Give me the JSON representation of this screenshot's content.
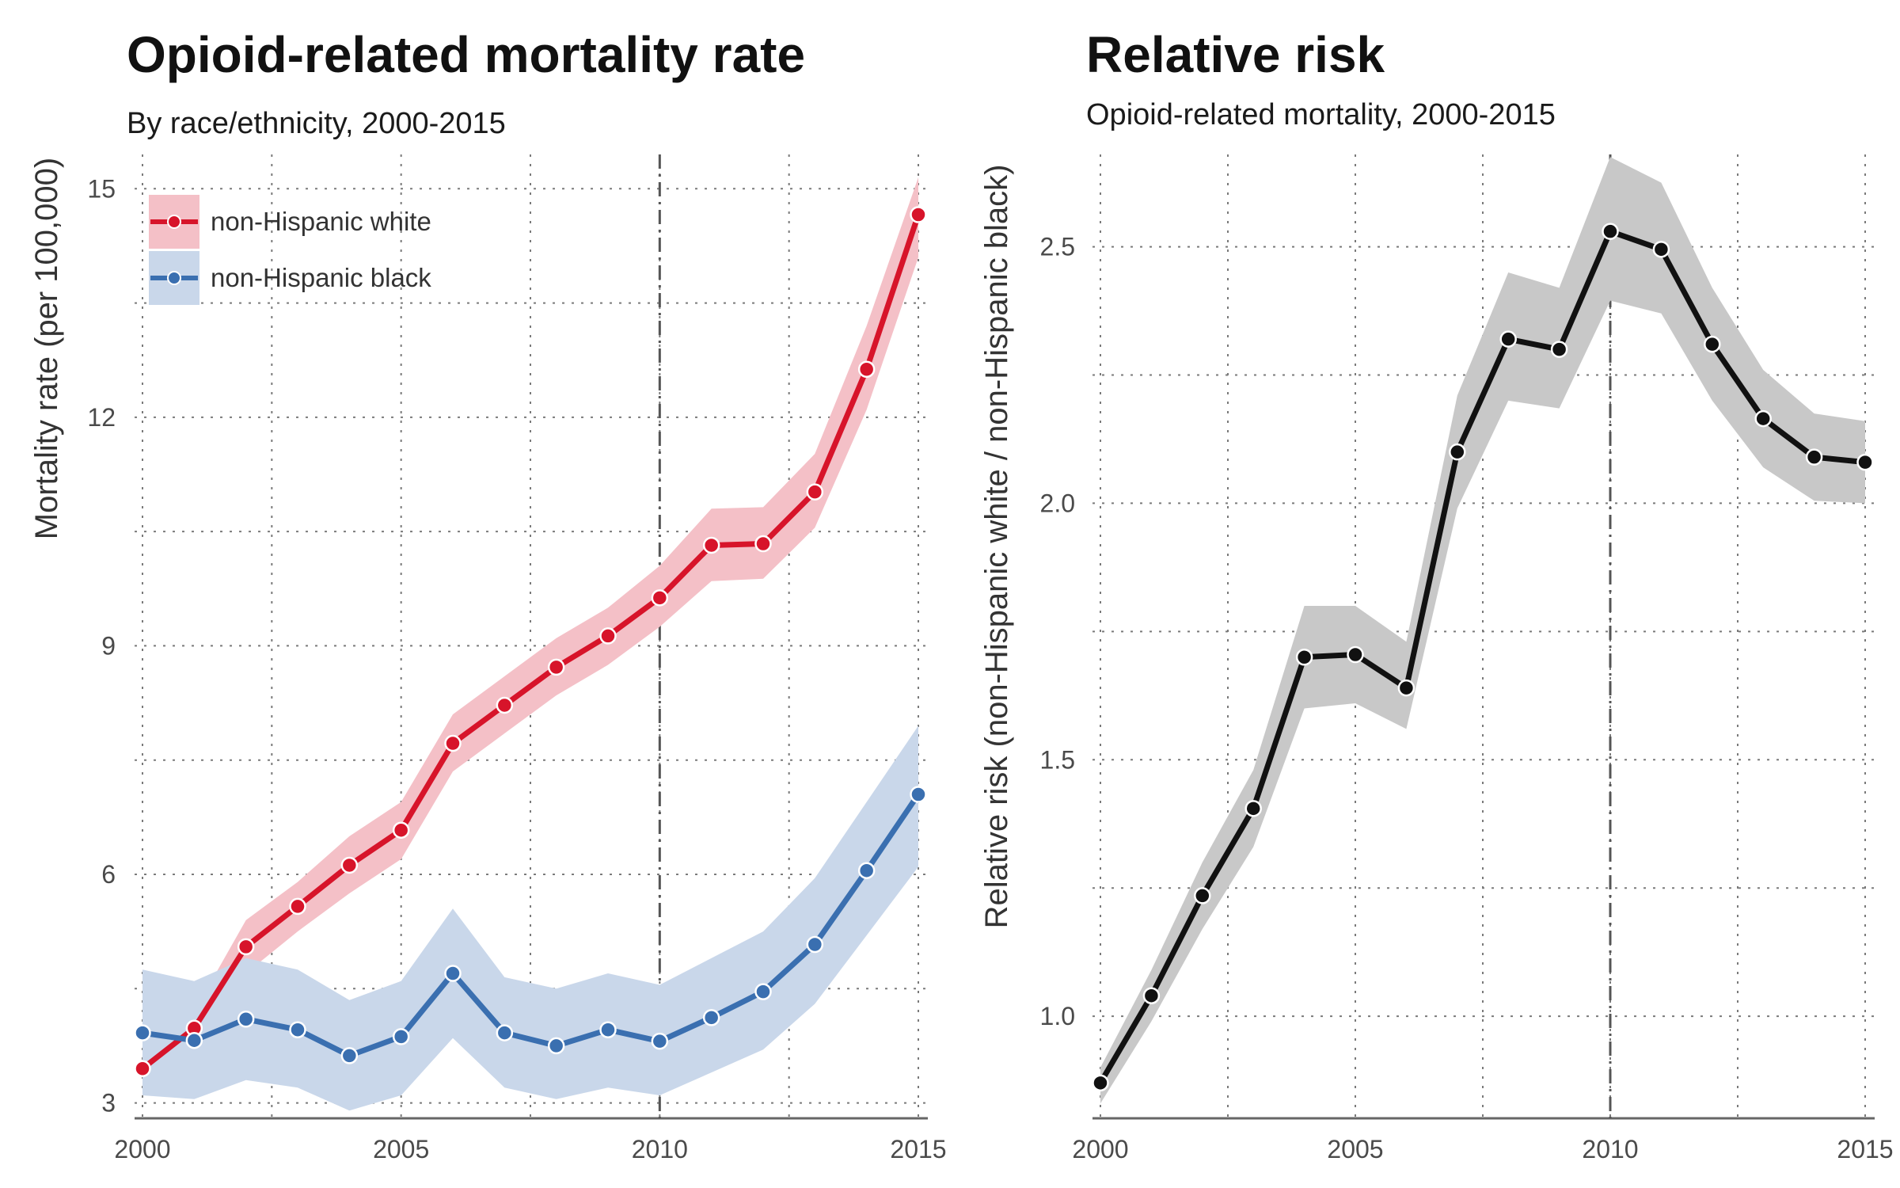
{
  "chart_data": [
    {
      "type": "line",
      "title": "Opioid-related mortality rate",
      "subtitle": "By race/ethnicity, 2000-2015",
      "xlabel": "",
      "ylabel": "Mortality rate (per 100,000)",
      "xlim": [
        2000,
        2015
      ],
      "ylim": [
        2.85,
        15.45
      ],
      "x_ticks": [
        2000,
        2005,
        2010,
        2015
      ],
      "y_ticks": [
        3,
        6,
        9,
        12,
        15
      ],
      "y_minor_grid": [
        4.5,
        7.5,
        10.5,
        13.5
      ],
      "x_minor_grid": [
        2002.5,
        2007.5,
        2012.5
      ],
      "reference_line_x": 2010,
      "grid": true,
      "legend_position": "top-left",
      "x": [
        2000,
        2001,
        2002,
        2003,
        2004,
        2005,
        2006,
        2007,
        2008,
        2009,
        2010,
        2011,
        2012,
        2013,
        2014,
        2015
      ],
      "series": [
        {
          "name": "non-Hispanic white",
          "color": "#d7142a",
          "band_color": "#f4c0c7",
          "values": [
            3.45,
            3.98,
            5.05,
            5.58,
            6.12,
            6.58,
            7.72,
            8.22,
            8.72,
            9.13,
            9.63,
            10.32,
            10.34,
            11.02,
            12.63,
            14.66
          ],
          "lower": [
            3.2,
            3.75,
            4.7,
            5.25,
            5.75,
            6.2,
            7.35,
            7.85,
            8.35,
            8.75,
            9.25,
            9.85,
            9.88,
            10.55,
            12.1,
            14.1
          ],
          "upper": [
            3.7,
            4.2,
            5.4,
            5.9,
            6.5,
            6.95,
            8.1,
            8.6,
            9.1,
            9.5,
            10.05,
            10.8,
            10.82,
            11.52,
            13.2,
            15.15
          ]
        },
        {
          "name": "non-Hispanic black",
          "color": "#3a6fb0",
          "band_color": "#c9d7ea",
          "values": [
            3.92,
            3.82,
            4.1,
            3.96,
            3.62,
            3.87,
            4.7,
            3.92,
            3.75,
            3.96,
            3.81,
            4.12,
            4.46,
            5.08,
            6.05,
            7.05
          ],
          "lower": [
            3.1,
            3.05,
            3.3,
            3.2,
            2.9,
            3.1,
            3.85,
            3.2,
            3.05,
            3.2,
            3.1,
            3.4,
            3.7,
            4.3,
            5.2,
            6.1
          ],
          "upper": [
            4.75,
            4.6,
            4.9,
            4.75,
            4.35,
            4.6,
            5.55,
            4.65,
            4.5,
            4.7,
            4.55,
            4.9,
            5.25,
            5.95,
            6.95,
            7.95
          ]
        }
      ]
    },
    {
      "type": "line",
      "title": "Relative risk",
      "subtitle": "Opioid-related mortality, 2000-2015",
      "xlabel": "",
      "ylabel": "Relative risk (non-Hispanic white / non-Hispanic black)",
      "xlim": [
        2000,
        2015
      ],
      "ylim": [
        0.835,
        2.68
      ],
      "x_ticks": [
        2000,
        2005,
        2010,
        2015
      ],
      "y_ticks": [
        1.0,
        1.5,
        2.0,
        2.5
      ],
      "y_tick_labels": [
        "1.0",
        "1.5",
        "2.0",
        "2.5"
      ],
      "y_minor_grid": [
        1.25,
        1.75,
        2.25
      ],
      "x_minor_grid": [
        2002.5,
        2007.5,
        2012.5
      ],
      "reference_line_x": 2010,
      "grid": true,
      "x": [
        2000,
        2001,
        2002,
        2003,
        2004,
        2005,
        2006,
        2007,
        2008,
        2009,
        2010,
        2011,
        2012,
        2013,
        2014,
        2015
      ],
      "series": [
        {
          "color": "#111111",
          "band_color": "#c8c8c8",
          "values": [
            0.87,
            1.04,
            1.235,
            1.405,
            1.7,
            1.705,
            1.64,
            2.1,
            2.32,
            2.3,
            2.53,
            2.495,
            2.31,
            2.165,
            2.09,
            2.08
          ],
          "lower": [
            0.83,
            0.99,
            1.17,
            1.33,
            1.6,
            1.61,
            1.56,
            1.99,
            2.2,
            2.185,
            2.395,
            2.37,
            2.2,
            2.07,
            2.005,
            2.0
          ],
          "upper": [
            0.9,
            1.09,
            1.3,
            1.48,
            1.8,
            1.8,
            1.73,
            2.21,
            2.45,
            2.42,
            2.675,
            2.625,
            2.42,
            2.26,
            2.175,
            2.16
          ]
        }
      ]
    }
  ]
}
